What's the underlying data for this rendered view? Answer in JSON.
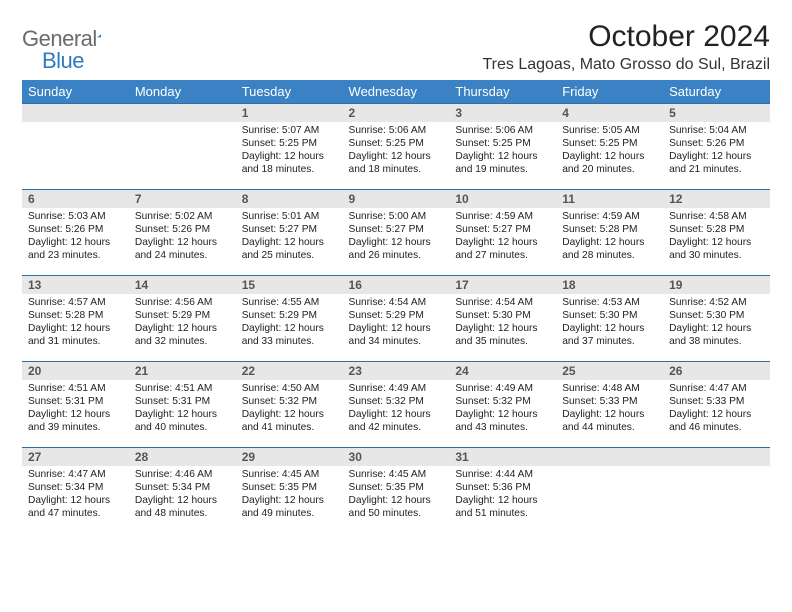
{
  "logo": {
    "part1": "General",
    "part2": "Blue"
  },
  "title": "October 2024",
  "location": "Tres Lagoas, Mato Grosso do Sul, Brazil",
  "colors": {
    "header_bg": "#3b82c4",
    "header_text": "#ffffff",
    "daynum_bg": "#e7e7e7",
    "daynum_border": "#2f6fa8",
    "logo_gray": "#6a6a6a",
    "logo_blue": "#2f7bbf"
  },
  "weekdays": [
    "Sunday",
    "Monday",
    "Tuesday",
    "Wednesday",
    "Thursday",
    "Friday",
    "Saturday"
  ],
  "weeks": [
    [
      null,
      null,
      {
        "n": "1",
        "sr": "5:07 AM",
        "ss": "5:25 PM",
        "dl": "12 hours and 18 minutes."
      },
      {
        "n": "2",
        "sr": "5:06 AM",
        "ss": "5:25 PM",
        "dl": "12 hours and 18 minutes."
      },
      {
        "n": "3",
        "sr": "5:06 AM",
        "ss": "5:25 PM",
        "dl": "12 hours and 19 minutes."
      },
      {
        "n": "4",
        "sr": "5:05 AM",
        "ss": "5:25 PM",
        "dl": "12 hours and 20 minutes."
      },
      {
        "n": "5",
        "sr": "5:04 AM",
        "ss": "5:26 PM",
        "dl": "12 hours and 21 minutes."
      }
    ],
    [
      {
        "n": "6",
        "sr": "5:03 AM",
        "ss": "5:26 PM",
        "dl": "12 hours and 23 minutes."
      },
      {
        "n": "7",
        "sr": "5:02 AM",
        "ss": "5:26 PM",
        "dl": "12 hours and 24 minutes."
      },
      {
        "n": "8",
        "sr": "5:01 AM",
        "ss": "5:27 PM",
        "dl": "12 hours and 25 minutes."
      },
      {
        "n": "9",
        "sr": "5:00 AM",
        "ss": "5:27 PM",
        "dl": "12 hours and 26 minutes."
      },
      {
        "n": "10",
        "sr": "4:59 AM",
        "ss": "5:27 PM",
        "dl": "12 hours and 27 minutes."
      },
      {
        "n": "11",
        "sr": "4:59 AM",
        "ss": "5:28 PM",
        "dl": "12 hours and 28 minutes."
      },
      {
        "n": "12",
        "sr": "4:58 AM",
        "ss": "5:28 PM",
        "dl": "12 hours and 30 minutes."
      }
    ],
    [
      {
        "n": "13",
        "sr": "4:57 AM",
        "ss": "5:28 PM",
        "dl": "12 hours and 31 minutes."
      },
      {
        "n": "14",
        "sr": "4:56 AM",
        "ss": "5:29 PM",
        "dl": "12 hours and 32 minutes."
      },
      {
        "n": "15",
        "sr": "4:55 AM",
        "ss": "5:29 PM",
        "dl": "12 hours and 33 minutes."
      },
      {
        "n": "16",
        "sr": "4:54 AM",
        "ss": "5:29 PM",
        "dl": "12 hours and 34 minutes."
      },
      {
        "n": "17",
        "sr": "4:54 AM",
        "ss": "5:30 PM",
        "dl": "12 hours and 35 minutes."
      },
      {
        "n": "18",
        "sr": "4:53 AM",
        "ss": "5:30 PM",
        "dl": "12 hours and 37 minutes."
      },
      {
        "n": "19",
        "sr": "4:52 AM",
        "ss": "5:30 PM",
        "dl": "12 hours and 38 minutes."
      }
    ],
    [
      {
        "n": "20",
        "sr": "4:51 AM",
        "ss": "5:31 PM",
        "dl": "12 hours and 39 minutes."
      },
      {
        "n": "21",
        "sr": "4:51 AM",
        "ss": "5:31 PM",
        "dl": "12 hours and 40 minutes."
      },
      {
        "n": "22",
        "sr": "4:50 AM",
        "ss": "5:32 PM",
        "dl": "12 hours and 41 minutes."
      },
      {
        "n": "23",
        "sr": "4:49 AM",
        "ss": "5:32 PM",
        "dl": "12 hours and 42 minutes."
      },
      {
        "n": "24",
        "sr": "4:49 AM",
        "ss": "5:32 PM",
        "dl": "12 hours and 43 minutes."
      },
      {
        "n": "25",
        "sr": "4:48 AM",
        "ss": "5:33 PM",
        "dl": "12 hours and 44 minutes."
      },
      {
        "n": "26",
        "sr": "4:47 AM",
        "ss": "5:33 PM",
        "dl": "12 hours and 46 minutes."
      }
    ],
    [
      {
        "n": "27",
        "sr": "4:47 AM",
        "ss": "5:34 PM",
        "dl": "12 hours and 47 minutes."
      },
      {
        "n": "28",
        "sr": "4:46 AM",
        "ss": "5:34 PM",
        "dl": "12 hours and 48 minutes."
      },
      {
        "n": "29",
        "sr": "4:45 AM",
        "ss": "5:35 PM",
        "dl": "12 hours and 49 minutes."
      },
      {
        "n": "30",
        "sr": "4:45 AM",
        "ss": "5:35 PM",
        "dl": "12 hours and 50 minutes."
      },
      {
        "n": "31",
        "sr": "4:44 AM",
        "ss": "5:36 PM",
        "dl": "12 hours and 51 minutes."
      },
      null,
      null
    ]
  ],
  "labels": {
    "sunrise": "Sunrise:",
    "sunset": "Sunset:",
    "daylight": "Daylight:"
  }
}
